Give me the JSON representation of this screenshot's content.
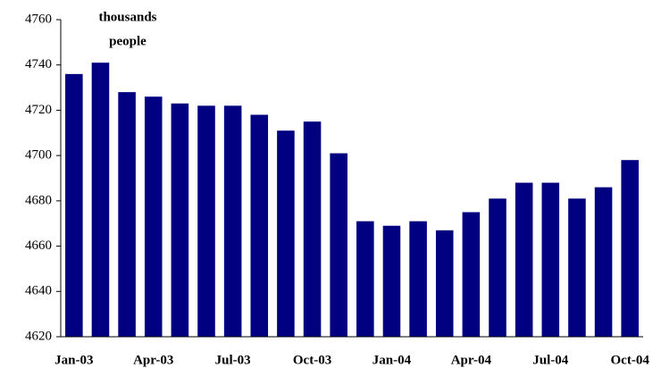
{
  "chart_data": {
    "type": "bar",
    "annotation": [
      "thousands",
      "people"
    ],
    "categories": [
      "Jan-03",
      null,
      null,
      "Apr-03",
      null,
      null,
      "Jul-03",
      null,
      null,
      "Oct-03",
      null,
      null,
      "Jan-04",
      null,
      null,
      "Apr-04",
      null,
      null,
      "Jul-04",
      null,
      null,
      "Oct-04"
    ],
    "values": [
      4736,
      4741,
      4728,
      4726,
      4723,
      4722,
      4722,
      4718,
      4711,
      4715,
      4701,
      4671,
      4669,
      4671,
      4667,
      4675,
      4681,
      4688,
      4688,
      4681,
      4686,
      4698
    ],
    "color": "#000080",
    "ylim": [
      4620,
      4760
    ],
    "yticks": [
      4620,
      4640,
      4660,
      4680,
      4700,
      4720,
      4740,
      4760
    ],
    "grid": false
  }
}
